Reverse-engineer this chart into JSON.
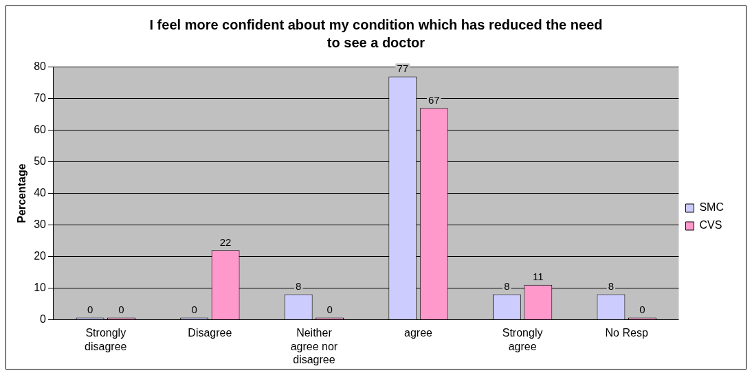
{
  "chart_data": {
    "type": "bar",
    "title": "I feel more confident about my condition which has reduced the need to see a doctor",
    "ylabel": "Percentage",
    "categories": [
      "Strongly disagree",
      "Disagree",
      "Neither agree nor disagree",
      "agree",
      "Strongly agree",
      "No Resp"
    ],
    "series": [
      {
        "name": "SMC",
        "color": "#ccccff",
        "values": [
          0,
          0,
          8,
          77,
          8,
          8
        ]
      },
      {
        "name": "CVS",
        "color": "#ff99cc",
        "values": [
          0,
          22,
          0,
          67,
          11,
          0
        ]
      }
    ],
    "ylim": [
      0,
      80
    ],
    "yticks": [
      0,
      10,
      20,
      30,
      40,
      50,
      60,
      70,
      80
    ],
    "grid": "y",
    "legend": "right",
    "data_labels": true
  }
}
